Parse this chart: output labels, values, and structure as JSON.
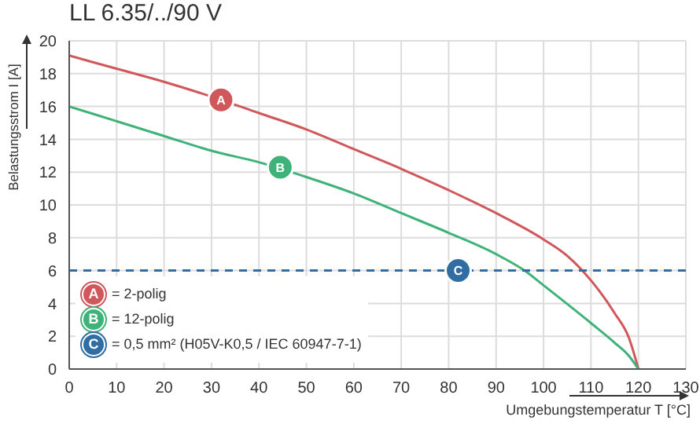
{
  "chart_data": {
    "type": "line",
    "title": "LL 6.35/../90 V",
    "xlabel": "Umgebungstemperatur T [°C]",
    "ylabel": "Belastungsstrom I [A]",
    "xlim": [
      0,
      130
    ],
    "xticks": [
      0,
      10,
      20,
      30,
      40,
      50,
      60,
      70,
      80,
      90,
      100,
      110,
      120,
      130
    ],
    "ylim": [
      0,
      20
    ],
    "yticks": [
      0,
      2,
      4,
      6,
      8,
      10,
      12,
      14,
      16,
      18,
      20
    ],
    "grid": true,
    "legend": "bottom left",
    "marker": "none",
    "line_style": "solid",
    "series": [
      {
        "name": "= 2-polig",
        "color": "#d0575a",
        "x": [
          0,
          10,
          20,
          30,
          40,
          50,
          60,
          70,
          80,
          90,
          100,
          105,
          110,
          115,
          118,
          120
        ],
        "values": [
          19.1,
          18.3,
          17.5,
          16.6,
          15.6,
          14.6,
          13.4,
          12.2,
          10.9,
          9.5,
          7.9,
          6.9,
          5.4,
          3.4,
          1.9,
          0
        ]
      },
      {
        "name": "= 12-polig",
        "color": "#3fb27a",
        "x": [
          0,
          10,
          20,
          30,
          40,
          50,
          60,
          70,
          80,
          90,
          96,
          100,
          110,
          115,
          118,
          120
        ],
        "values": [
          16,
          15.1,
          14.2,
          13.3,
          12.6,
          11.7,
          10.7,
          9.5,
          8.3,
          7.0,
          6.0,
          5.1,
          2.8,
          1.6,
          0.8,
          0
        ]
      },
      {
        "name": "= 0,5 mm² (H05V-K0,5 / IEC 60947-7-1)",
        "color": "#2f6da3",
        "line_style": "dashed",
        "x": [
          0,
          130
        ],
        "values": [
          6,
          6
        ]
      }
    ],
    "annotations": [
      {
        "text": "A",
        "x": 32,
        "y": 16.4
      },
      {
        "text": "B",
        "x": 44.5,
        "y": 12.3
      },
      {
        "text": "C",
        "x": 82,
        "y": 6
      }
    ]
  }
}
